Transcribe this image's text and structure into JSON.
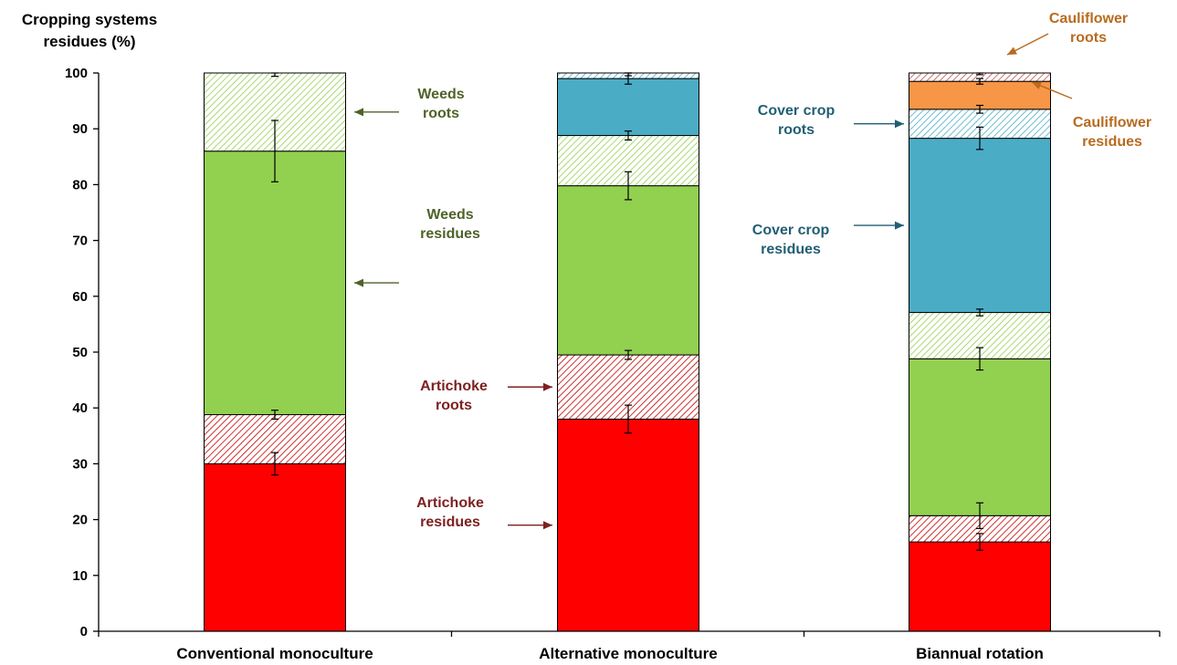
{
  "chart_data": {
    "type": "bar",
    "stacked": true,
    "ylabel": [
      "Cropping systems",
      "residues (%)"
    ],
    "ylim": [
      0,
      100
    ],
    "yticks": [
      0,
      10,
      20,
      30,
      40,
      50,
      60,
      70,
      80,
      90,
      100
    ],
    "categories": [
      "Conventional monoculture",
      "Alternative monoculture",
      "Biannual rotation"
    ],
    "grid": false,
    "legend": "none",
    "series": [
      {
        "key": "artichoke_residues",
        "color": "#ff0000",
        "pattern": "solid",
        "values": [
          30,
          38,
          16
        ],
        "errors": [
          2,
          2.5,
          1.5
        ]
      },
      {
        "key": "artichoke_roots",
        "color": "#c00000",
        "pattern": "hatch",
        "values": [
          8.8,
          11.5,
          4.7
        ],
        "errors": [
          0.8,
          0.8,
          2.3
        ]
      },
      {
        "key": "weeds_residues",
        "color": "#92d050",
        "pattern": "solid",
        "values": [
          47.2,
          30.3,
          28.1
        ],
        "errors": [
          5.5,
          2.5,
          2
        ]
      },
      {
        "key": "weeds_roots",
        "color": "#92d050",
        "pattern": "hatch",
        "values": [
          14,
          9,
          8.3
        ],
        "errors": [
          0.6,
          0.8,
          0.6
        ]
      },
      {
        "key": "cover_crop_residues",
        "color": "#4bacc6",
        "pattern": "solid",
        "values": [
          0,
          10.2,
          31.2
        ],
        "errors": [
          0,
          1,
          2
        ]
      },
      {
        "key": "cover_crop_roots",
        "color": "#4bacc6",
        "pattern": "hatch",
        "values": [
          0,
          1,
          5.2
        ],
        "errors": [
          0,
          0.5,
          0.7
        ]
      },
      {
        "key": "cauliflower_residues",
        "color": "#f79646",
        "pattern": "solid",
        "values": [
          0,
          0,
          5
        ],
        "errors": [
          0,
          0,
          0.5
        ]
      },
      {
        "key": "cauliflower_roots",
        "color": "#c0504d",
        "pattern": "hatch",
        "values": [
          0,
          0,
          1.5
        ],
        "errors": [
          0,
          0,
          0.3
        ]
      }
    ],
    "annotations": [
      {
        "key": "weeds_roots",
        "lines": [
          "Weeds",
          "roots"
        ],
        "color": "#4f6228"
      },
      {
        "key": "weeds_residues",
        "lines": [
          "Weeds",
          "residues"
        ],
        "color": "#4f6228"
      },
      {
        "key": "artichoke_roots",
        "lines": [
          "Artichoke",
          "roots"
        ],
        "color": "#7f2020"
      },
      {
        "key": "artichoke_residues",
        "lines": [
          "Artichoke",
          "residues"
        ],
        "color": "#7f2020"
      },
      {
        "key": "cover_crop_roots",
        "lines": [
          "Cover crop",
          "roots"
        ],
        "color": "#215f74"
      },
      {
        "key": "cover_crop_residues",
        "lines": [
          "Cover crop",
          "residues"
        ],
        "color": "#215f74"
      },
      {
        "key": "cauliflower_roots",
        "lines": [
          "Cauliflower",
          "roots"
        ],
        "color": "#b86b1f"
      },
      {
        "key": "cauliflower_residues",
        "lines": [
          "Cauliflower",
          "residues"
        ],
        "color": "#b86b1f"
      }
    ]
  }
}
